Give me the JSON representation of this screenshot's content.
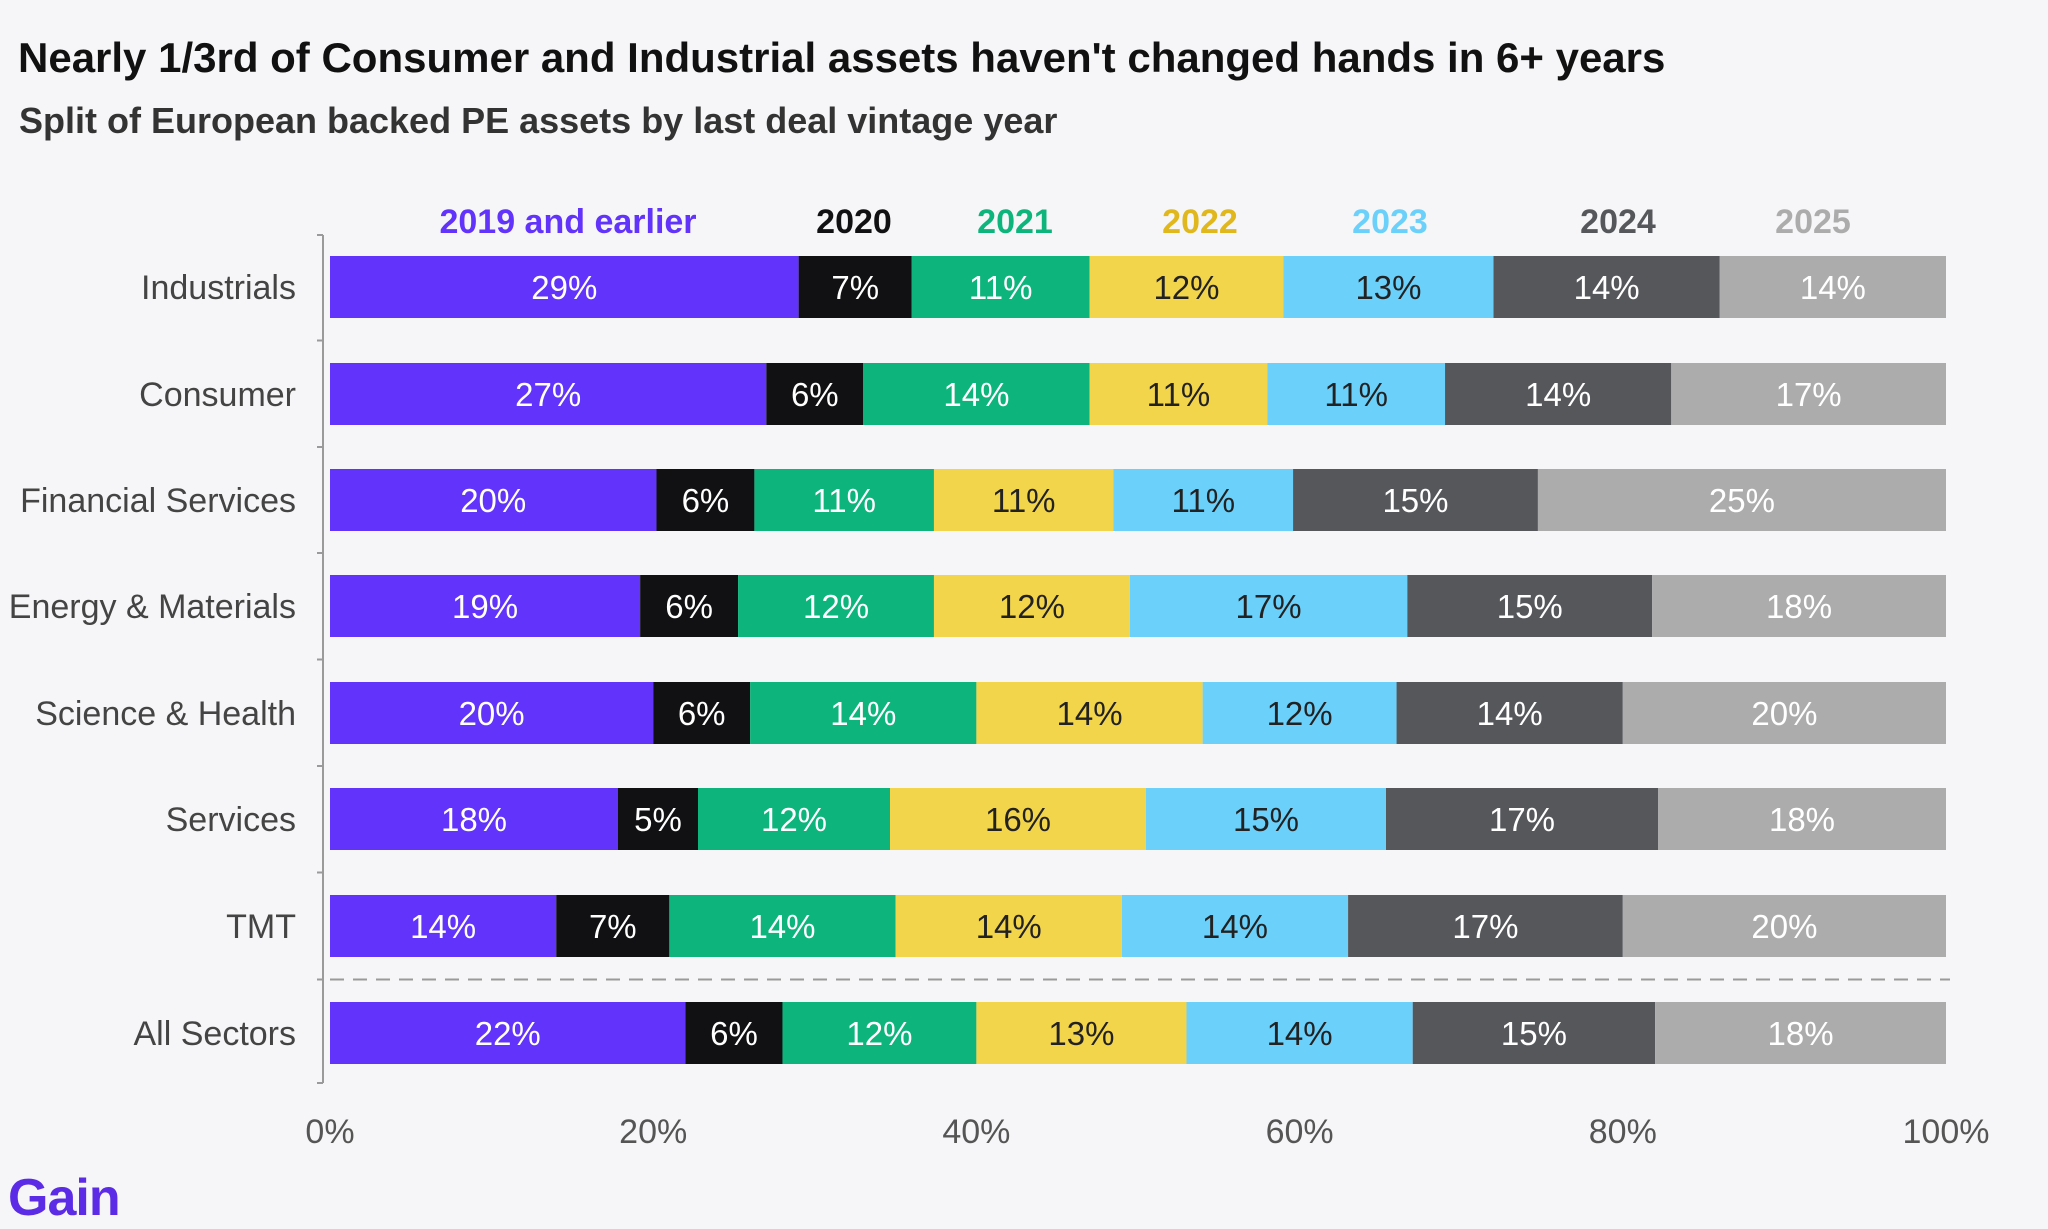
{
  "title": "Nearly 1/3rd of Consumer and Industrial assets haven't changed hands in 6+ years",
  "subtitle": "Split of European backed PE assets by last deal vintage year",
  "logo": "Gain",
  "colors": {
    "2019 and earlier": "#6233fa",
    "2020": "#111114",
    "2021": "#0db47c",
    "2022": "#f3d54c",
    "2023": "#6bd0fa",
    "2024": "#55575b",
    "2025": "#acacac"
  },
  "legend_text_colors": [
    "#6233fa",
    "#111114",
    "#0db47c",
    "#e0b81d",
    "#6bd0fa",
    "#55575b",
    "#acacac"
  ],
  "label_text_colors": [
    "#ffffff",
    "#ffffff",
    "#ffffff",
    "#222222",
    "#222222",
    "#ffffff",
    "#ffffff"
  ],
  "chart_data": {
    "type": "bar",
    "orientation": "horizontal",
    "stacked": true,
    "title": "Nearly 1/3rd of Consumer and Industrial assets haven't changed hands in 6+ years",
    "subtitle": "Split of European backed PE assets by last deal vintage year",
    "categories": [
      "Industrials",
      "Consumer",
      "Financial Services",
      "Energy & Materials",
      "Science & Health",
      "Services",
      "TMT",
      "All Sectors"
    ],
    "series": [
      {
        "name": "2019 and earlier",
        "values": [
          29,
          27,
          20,
          19,
          20,
          18,
          14,
          22
        ]
      },
      {
        "name": "2020",
        "values": [
          7,
          6,
          6,
          6,
          6,
          5,
          7,
          6
        ]
      },
      {
        "name": "2021",
        "values": [
          11,
          14,
          11,
          12,
          14,
          12,
          14,
          12
        ]
      },
      {
        "name": "2022",
        "values": [
          12,
          11,
          11,
          12,
          14,
          16,
          14,
          13
        ]
      },
      {
        "name": "2023",
        "values": [
          13,
          11,
          11,
          17,
          12,
          15,
          14,
          14
        ]
      },
      {
        "name": "2024",
        "values": [
          14,
          14,
          15,
          15,
          14,
          17,
          17,
          15
        ]
      },
      {
        "name": "2025",
        "values": [
          14,
          17,
          25,
          18,
          20,
          18,
          20,
          18
        ]
      }
    ],
    "xticks": [
      "0%",
      "20%",
      "40%",
      "60%",
      "80%",
      "100%"
    ],
    "xlim": [
      0,
      100
    ],
    "legend_position": "top",
    "separator_before": "All Sectors"
  }
}
